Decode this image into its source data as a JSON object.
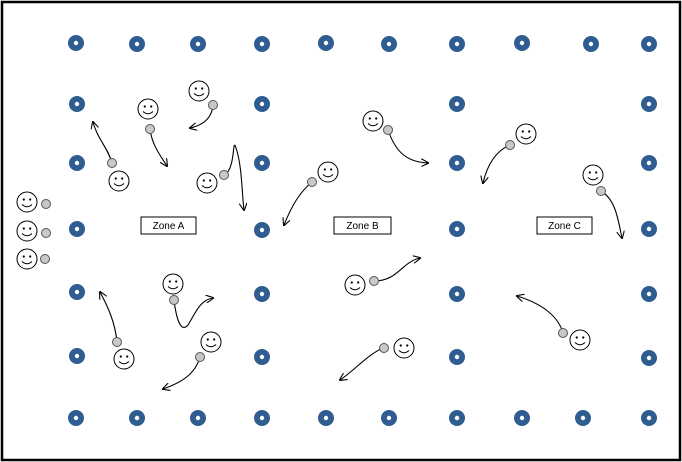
{
  "zones": [
    {
      "id": "a",
      "label": "Zone A"
    },
    {
      "id": "b",
      "label": "Zone B"
    },
    {
      "id": "c",
      "label": "Zone C"
    }
  ],
  "icons": {
    "cone": "cone-icon",
    "player": "smiley-player-icon",
    "ball": "ball-icon",
    "movement": "curved-arrow"
  },
  "colors": {
    "cone_outer": "#2f5d91",
    "cone_inner": "#ffffff",
    "ball": "#c8c8c8",
    "player_face": "#ffffff",
    "line": "#000000",
    "border": "#000000"
  }
}
